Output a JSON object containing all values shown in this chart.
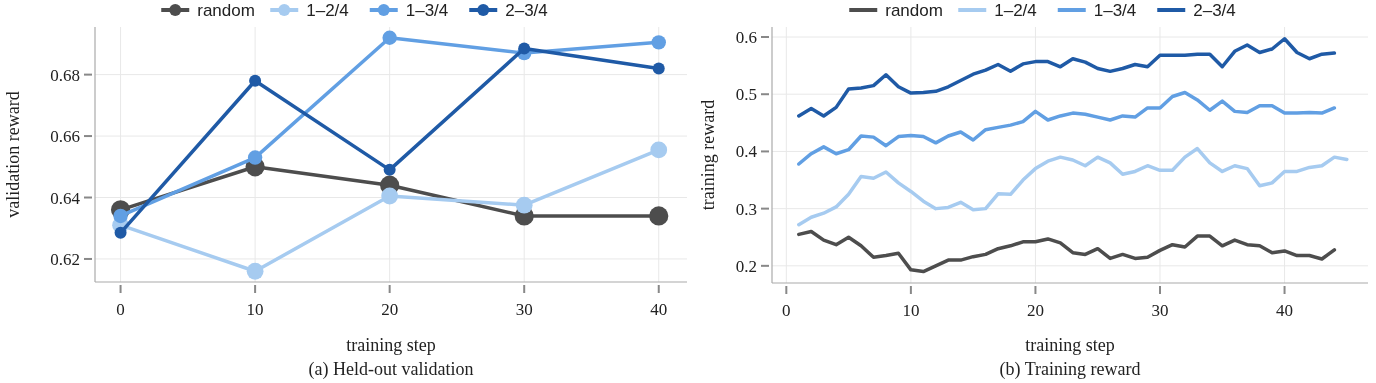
{
  "chart_data": [
    {
      "type": "line",
      "title": "(a) Held-out validation",
      "xlabel": "training step",
      "ylabel": "validation reward",
      "x": [
        0,
        10,
        20,
        30,
        40
      ],
      "xlim": [
        -1.9,
        42.1
      ],
      "ylim": [
        0.6125,
        0.6955
      ],
      "xticks": [
        0,
        10,
        20,
        30,
        40
      ],
      "yticks": [
        0.62,
        0.64,
        0.66,
        0.68
      ],
      "grid": true,
      "legend": "top",
      "marker": "circle",
      "line_style": "solid",
      "series": [
        {
          "name": "random",
          "color": "#4d4d4d",
          "values": [
            0.636,
            0.65,
            0.644,
            0.634,
            0.634
          ]
        },
        {
          "name": "1–2/4",
          "color": "#a6cbf0",
          "values": [
            0.631,
            0.616,
            0.6405,
            0.6375,
            0.6555
          ]
        },
        {
          "name": "1–3/4",
          "color": "#619fe3",
          "values": [
            0.634,
            0.653,
            0.692,
            0.687,
            0.6905
          ]
        },
        {
          "name": "2–3/4",
          "color": "#1f5aa6",
          "values": [
            0.6285,
            0.678,
            0.649,
            0.6885,
            0.682
          ]
        }
      ]
    },
    {
      "type": "line",
      "title": "(b) Training reward",
      "xlabel": "training step",
      "ylabel": "training reward",
      "xlim": [
        -1.15,
        46.7
      ],
      "ylim": [
        0.17,
        0.6175
      ],
      "xticks": [
        0,
        10,
        20,
        30,
        40
      ],
      "yticks": [
        0.2,
        0.3,
        0.4,
        0.5,
        0.6
      ],
      "grid": true,
      "legend": "top",
      "marker": "none",
      "line_style": "solid",
      "series": [
        {
          "name": "random",
          "color": "#4d4d4d",
          "x": [
            1,
            2,
            3,
            4,
            5,
            6,
            7,
            8,
            9,
            10,
            11,
            12,
            13,
            14,
            15,
            16,
            17,
            18,
            19,
            20,
            21,
            22,
            23,
            24,
            25,
            26,
            27,
            28,
            29,
            30,
            31,
            32,
            33,
            34,
            35,
            36,
            37,
            38,
            39,
            40,
            41,
            42,
            43,
            44
          ],
          "values": [
            0.255,
            0.26,
            0.245,
            0.237,
            0.25,
            0.235,
            0.215,
            0.218,
            0.222,
            0.193,
            0.19,
            0.2,
            0.21,
            0.21,
            0.216,
            0.22,
            0.23,
            0.235,
            0.242,
            0.242,
            0.247,
            0.24,
            0.223,
            0.22,
            0.23,
            0.213,
            0.22,
            0.213,
            0.215,
            0.227,
            0.237,
            0.233,
            0.252,
            0.252,
            0.235,
            0.245,
            0.237,
            0.235,
            0.223,
            0.226,
            0.218,
            0.218,
            0.212,
            0.228
          ]
        },
        {
          "name": "1–2/4",
          "color": "#a6cbf0",
          "x": [
            1,
            2,
            3,
            4,
            5,
            6,
            7,
            8,
            9,
            10,
            11,
            12,
            13,
            14,
            15,
            16,
            17,
            18,
            19,
            20,
            21,
            22,
            23,
            24,
            25,
            26,
            27,
            28,
            29,
            30,
            31,
            32,
            33,
            34,
            35,
            36,
            37,
            38,
            39,
            40,
            41,
            42,
            43,
            44,
            45
          ],
          "values": [
            0.272,
            0.285,
            0.292,
            0.303,
            0.325,
            0.356,
            0.353,
            0.364,
            0.345,
            0.33,
            0.313,
            0.3,
            0.302,
            0.311,
            0.298,
            0.3,
            0.326,
            0.325,
            0.35,
            0.37,
            0.383,
            0.39,
            0.385,
            0.375,
            0.39,
            0.38,
            0.36,
            0.365,
            0.375,
            0.367,
            0.367,
            0.39,
            0.405,
            0.38,
            0.365,
            0.375,
            0.37,
            0.34,
            0.345,
            0.365,
            0.365,
            0.372,
            0.375,
            0.39,
            0.386
          ]
        },
        {
          "name": "1–3/4",
          "color": "#619fe3",
          "x": [
            1,
            2,
            3,
            4,
            5,
            6,
            7,
            8,
            9,
            10,
            11,
            12,
            13,
            14,
            15,
            16,
            17,
            18,
            19,
            20,
            21,
            22,
            23,
            24,
            25,
            26,
            27,
            28,
            29,
            30,
            31,
            32,
            33,
            34,
            35,
            36,
            37,
            38,
            39,
            40,
            41,
            42,
            43,
            44
          ],
          "values": [
            0.378,
            0.396,
            0.408,
            0.396,
            0.403,
            0.427,
            0.425,
            0.41,
            0.426,
            0.428,
            0.426,
            0.415,
            0.427,
            0.434,
            0.42,
            0.438,
            0.442,
            0.446,
            0.452,
            0.47,
            0.455,
            0.462,
            0.467,
            0.465,
            0.46,
            0.455,
            0.462,
            0.46,
            0.476,
            0.476,
            0.496,
            0.503,
            0.49,
            0.472,
            0.488,
            0.47,
            0.468,
            0.48,
            0.48,
            0.467,
            0.467,
            0.468,
            0.467,
            0.476
          ]
        },
        {
          "name": "2–3/4",
          "color": "#1f5aa6",
          "x": [
            1,
            2,
            3,
            4,
            5,
            6,
            7,
            8,
            9,
            10,
            11,
            12,
            13,
            14,
            15,
            16,
            17,
            18,
            19,
            20,
            21,
            22,
            23,
            24,
            25,
            26,
            27,
            28,
            29,
            30,
            31,
            32,
            33,
            34,
            35,
            36,
            37,
            38,
            39,
            40,
            41,
            42,
            43,
            44
          ],
          "values": [
            0.462,
            0.475,
            0.462,
            0.477,
            0.509,
            0.511,
            0.515,
            0.534,
            0.513,
            0.502,
            0.503,
            0.505,
            0.513,
            0.524,
            0.535,
            0.542,
            0.552,
            0.54,
            0.553,
            0.557,
            0.557,
            0.548,
            0.562,
            0.556,
            0.545,
            0.54,
            0.545,
            0.552,
            0.548,
            0.568,
            0.568,
            0.568,
            0.57,
            0.57,
            0.548,
            0.575,
            0.586,
            0.573,
            0.579,
            0.597,
            0.573,
            0.562,
            0.57,
            0.572
          ]
        }
      ]
    }
  ]
}
